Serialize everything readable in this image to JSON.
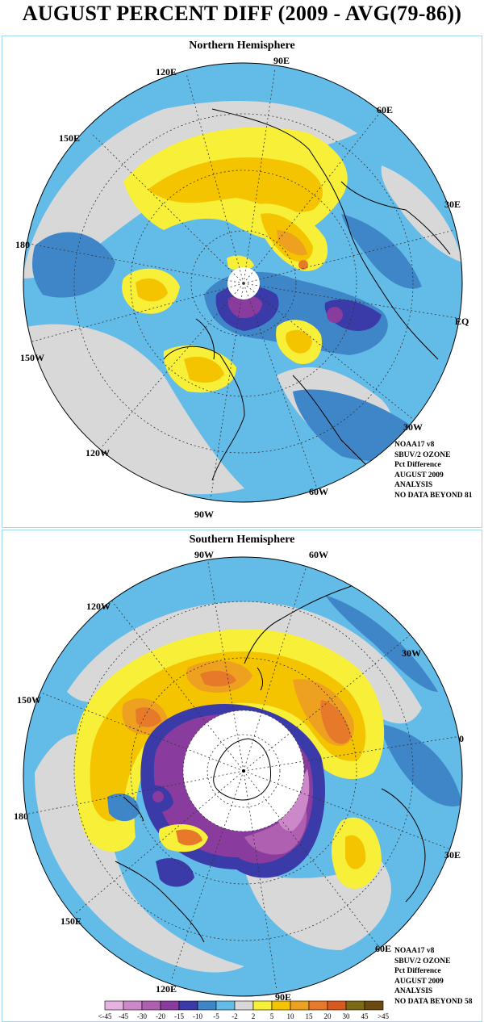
{
  "title": "AUGUST PERCENT DIFF (2009 - AVG(79-86))",
  "northern": {
    "title": "Northern Hemisphere",
    "lon_labels": [
      "90E",
      "60E",
      "30E",
      "EQ",
      "30W",
      "60W",
      "90W",
      "120W",
      "150W",
      "180",
      "150E",
      "120E"
    ],
    "info": [
      "NOAA17 v8",
      "SBUV/2 OZONE",
      "Pct Difference",
      "AUGUST 2009",
      "ANALYSIS",
      "NO DATA BEYOND  81"
    ]
  },
  "southern": {
    "title": "Southern Hemisphere",
    "lon_labels": [
      "90W",
      "60W",
      "30W",
      "0",
      "30E",
      "60E",
      "90E",
      "120E",
      "150E",
      "180",
      "150W",
      "120W"
    ],
    "info": [
      "NOAA17 v8",
      "SBUV/2 OZONE",
      "Pct Difference",
      "AUGUST 2009",
      "ANALYSIS",
      "NO DATA BEYOND  58"
    ]
  },
  "colorbar": {
    "labels": [
      "<-45",
      "-45",
      "-30",
      "-20",
      "-15",
      "-10",
      "-5",
      "-2",
      "2",
      "5",
      "10",
      "15",
      "20",
      "30",
      "45",
      ">45"
    ],
    "colors": [
      "#e6b3e0",
      "#cc88c8",
      "#b060b0",
      "#8a3c9e",
      "#3a3aa8",
      "#3f86c9",
      "#63bbe8",
      "#d8d8d8",
      "#f7ef38",
      "#f5c400",
      "#eea020",
      "#e7792b",
      "#d85a1f",
      "#7a6a14",
      "#6b4a12"
    ]
  }
}
